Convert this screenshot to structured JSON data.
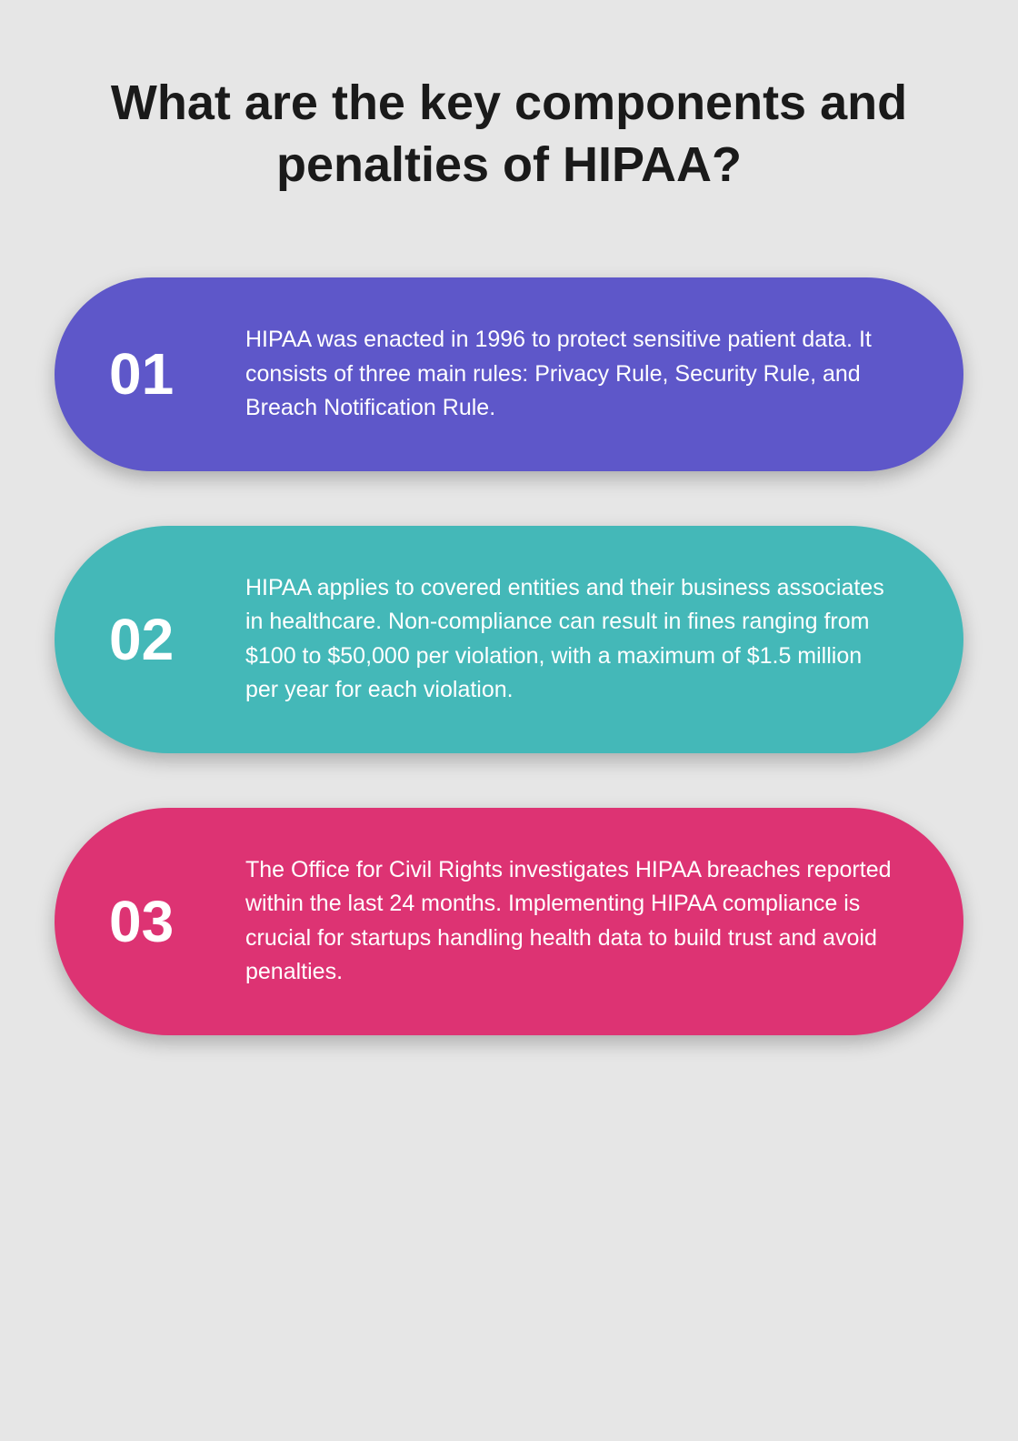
{
  "title": "What are the key components and penalties of HIPAA?",
  "background_color": "#e6e6e6",
  "title_color": "#1a1a1a",
  "title_fontsize": 54,
  "cards": [
    {
      "number": "01",
      "text": "HIPAA was enacted in 1996 to protect sensitive patient data. It consists of three main rules: Privacy Rule, Security Rule, and Breach Notification Rule.",
      "background_color": "#5e57c9",
      "text_color": "#ffffff",
      "number_fontsize": 64,
      "text_fontsize": 25
    },
    {
      "number": "02",
      "text": "HIPAA applies to covered entities and their business associates in healthcare. Non-compliance can result in fines ranging from $100 to $50,000 per violation, with a maximum of $1.5 million per year for each violation.",
      "background_color": "#44b8b8",
      "text_color": "#ffffff",
      "number_fontsize": 64,
      "text_fontsize": 25
    },
    {
      "number": "03",
      "text": "The Office for Civil Rights investigates HIPAA breaches reported within the last 24 months. Implementing HIPAA compliance is crucial for startups handling health data to build trust and avoid penalties.",
      "background_color": "#dd3373",
      "text_color": "#ffffff",
      "number_fontsize": 64,
      "text_fontsize": 25
    }
  ]
}
